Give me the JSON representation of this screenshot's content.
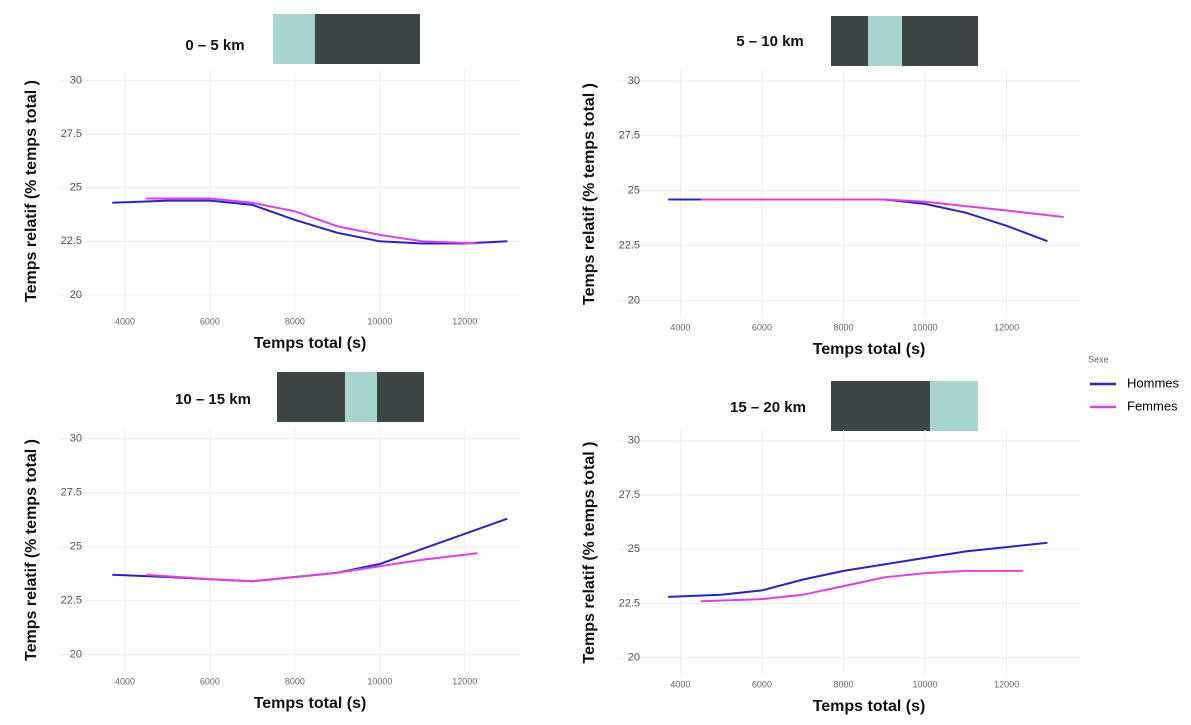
{
  "chart_data": [
    {
      "type": "line",
      "title": "0 – 5 km",
      "xlabel": "Temps total (s)",
      "ylabel": "Temps relatif (% temps total )",
      "xlim": [
        2470,
        13300
      ],
      "ylim": [
        19.2,
        30.5
      ],
      "xticks": [
        4000,
        6000,
        8000,
        10000,
        12000
      ],
      "yticks": [
        30,
        27.5,
        25,
        22.5,
        20
      ],
      "grid": true,
      "series": [
        {
          "name": "Hommes",
          "color": "#2a22c8",
          "x": [
            3700,
            5000,
            6000,
            7000,
            8000,
            9000,
            10000,
            11000,
            12000,
            13000
          ],
          "values": [
            24.3,
            24.4,
            24.4,
            24.2,
            23.5,
            22.9,
            22.5,
            22.4,
            22.4,
            22.5
          ]
        },
        {
          "name": "Femmes",
          "color": "#e040e0",
          "x": [
            4500,
            6000,
            7000,
            8000,
            9000,
            10000,
            11000,
            12300
          ],
          "values": [
            24.5,
            24.5,
            24.3,
            23.9,
            23.2,
            22.8,
            22.5,
            22.4
          ]
        }
      ]
    },
    {
      "type": "line",
      "title": "5 – 10 km",
      "xlabel": "Temps total (s)",
      "ylabel": "Temps relatif (% temps total )",
      "xlim": [
        2470,
        13800
      ],
      "ylim": [
        19.2,
        30.5
      ],
      "xticks": [
        4000,
        6000,
        8000,
        10000,
        12000
      ],
      "yticks": [
        30,
        27.5,
        25,
        22.5,
        20
      ],
      "grid": true,
      "series": [
        {
          "name": "Hommes",
          "color": "#2a22c8",
          "x": [
            3700,
            5000,
            6000,
            7000,
            8000,
            9000,
            10000,
            11000,
            12000,
            13000
          ],
          "values": [
            24.6,
            24.6,
            24.6,
            24.6,
            24.6,
            24.6,
            24.4,
            24.0,
            23.4,
            22.7
          ]
        },
        {
          "name": "Femmes",
          "color": "#e040e0",
          "x": [
            4500,
            6000,
            7000,
            8000,
            9000,
            10000,
            11000,
            12000,
            13400
          ],
          "values": [
            24.6,
            24.6,
            24.6,
            24.6,
            24.6,
            24.5,
            24.3,
            24.1,
            23.8
          ]
        }
      ]
    },
    {
      "type": "line",
      "title": "10 – 15 km",
      "xlabel": "Temps total (s)",
      "ylabel": "Temps relatif (% temps total )",
      "xlim": [
        2470,
        13300
      ],
      "ylim": [
        19.2,
        30.5
      ],
      "xticks": [
        4000,
        6000,
        8000,
        10000,
        12000
      ],
      "yticks": [
        30,
        27.5,
        25,
        22.5,
        20
      ],
      "grid": true,
      "series": [
        {
          "name": "Hommes",
          "color": "#2a22c8",
          "x": [
            3700,
            5000,
            6000,
            7000,
            8000,
            9000,
            10000,
            11000,
            12000,
            13000
          ],
          "values": [
            23.7,
            23.6,
            23.5,
            23.4,
            23.6,
            23.8,
            24.2,
            24.9,
            25.6,
            26.3
          ]
        },
        {
          "name": "Femmes",
          "color": "#e040e0",
          "x": [
            4500,
            6000,
            7000,
            8000,
            9000,
            10000,
            11000,
            12300
          ],
          "values": [
            23.7,
            23.5,
            23.4,
            23.6,
            23.8,
            24.1,
            24.4,
            24.7
          ]
        }
      ]
    },
    {
      "type": "line",
      "title": "15 – 20 km",
      "xlabel": "Temps total (s)",
      "ylabel": "Temps relatif (% temps total )",
      "xlim": [
        2470,
        13800
      ],
      "ylim": [
        19.2,
        30.5
      ],
      "xticks": [
        4000,
        6000,
        8000,
        10000,
        12000
      ],
      "yticks": [
        30,
        27.5,
        25,
        22.5,
        20
      ],
      "grid": true,
      "series": [
        {
          "name": "Hommes",
          "color": "#2a22c8",
          "x": [
            3700,
            5000,
            6000,
            7000,
            8000,
            9000,
            10000,
            11000,
            12000,
            13000
          ],
          "values": [
            22.8,
            22.9,
            23.1,
            23.6,
            24.0,
            24.3,
            24.6,
            24.9,
            25.1,
            25.3
          ]
        },
        {
          "name": "Femmes",
          "color": "#e040e0",
          "x": [
            4500,
            6000,
            7000,
            8000,
            9000,
            10000,
            11000,
            12400
          ],
          "values": [
            22.6,
            22.7,
            22.9,
            23.3,
            23.7,
            23.9,
            24.0,
            24.0
          ]
        }
      ]
    }
  ],
  "legend": {
    "title": "Sexe"
  }
}
